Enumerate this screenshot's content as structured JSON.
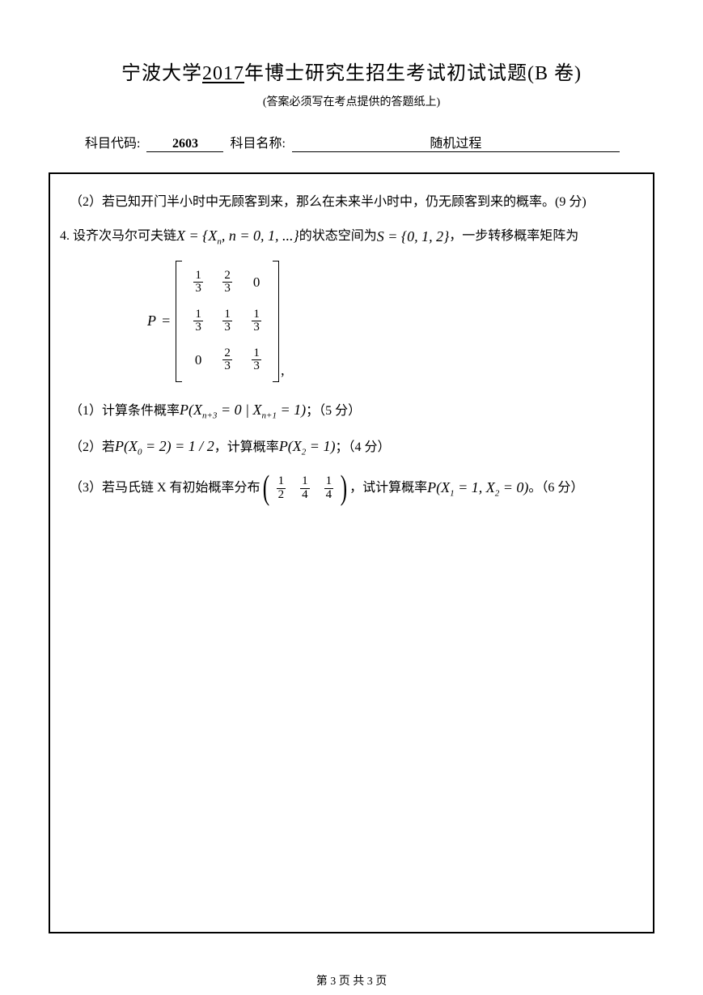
{
  "header": {
    "university": "宁波大学",
    "year": "2017",
    "title_suffix": "年博士研究生招生考试初试试题(B 卷)",
    "subtitle": "(答案必须写在考点提供的答题纸上)"
  },
  "meta": {
    "code_label": "科目代码:",
    "code_value": "2603",
    "name_label": "科目名称:",
    "name_value": "随机过程"
  },
  "content": {
    "line_q2": "（2）若已知开门半小时中无顾客到来，那么在未来半小时中，仍无顾客到来的概率。(9 分)",
    "q4_prefix": "4. 设齐次马尔可夫链 ",
    "q4_math_x": "X = {X",
    "q4_math_xn": "n",
    "q4_math_x2": ", n = 0, 1, ...}",
    "q4_mid": " 的状态空间为 ",
    "q4_math_s": "S = {0, 1, 2}",
    "q4_suffix": " ，一步转移概率矩阵为",
    "matrix_label": "P",
    "matrix": {
      "rows": [
        [
          {
            "n": "1",
            "d": "3"
          },
          {
            "n": "2",
            "d": "3"
          },
          {
            "v": "0"
          }
        ],
        [
          {
            "n": "1",
            "d": "3"
          },
          {
            "n": "1",
            "d": "3"
          },
          {
            "n": "1",
            "d": "3"
          }
        ],
        [
          {
            "v": "0"
          },
          {
            "n": "2",
            "d": "3"
          },
          {
            "n": "1",
            "d": "3"
          }
        ]
      ]
    },
    "sub1_prefix": "（1）计算条件概率 ",
    "sub1_math": "P(X",
    "sub1_s1": "n+3",
    "sub1_m1": " = 0 | X",
    "sub1_s2": "n+1",
    "sub1_m2": " = 1)",
    "sub1_suffix": "；（5 分）",
    "sub2_prefix": "（2）若 ",
    "sub2_math1": "P(X",
    "sub2_s1": "0",
    "sub2_m1": " = 2) = 1 / 2",
    "sub2_mid": " ，计算概率 ",
    "sub2_math2": "P(X",
    "sub2_s2": "2",
    "sub2_m2": " = 1)",
    "sub2_suffix": "；（4 分）",
    "sub3_prefix": "（3）若马氏链 X 有初始概率分布",
    "sub3_vec": [
      {
        "n": "1",
        "d": "2"
      },
      {
        "n": "1",
        "d": "4"
      },
      {
        "n": "1",
        "d": "4"
      }
    ],
    "sub3_mid": "，试计算概率 ",
    "sub3_math": "P(X",
    "sub3_s1": "1",
    "sub3_m1": " = 1, X",
    "sub3_s2": "2",
    "sub3_m2": " = 0)",
    "sub3_suffix": "。（6 分）"
  },
  "footer": {
    "text": "第 3 页 共 3 页"
  }
}
